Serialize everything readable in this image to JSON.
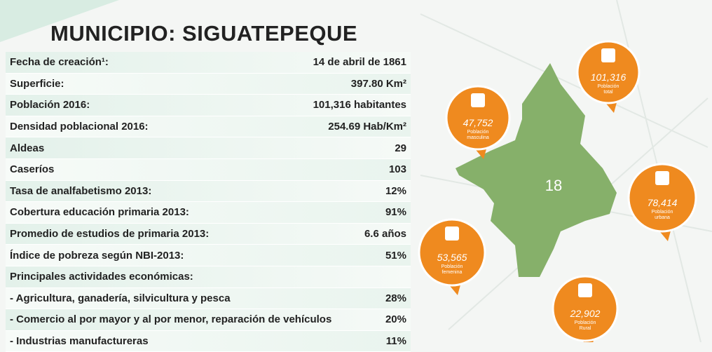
{
  "title": "MUNICIPIO: SIGUATEPEQUE",
  "table": {
    "rows": [
      [
        "Fecha de creación¹:",
        "14 de abril de 1861"
      ],
      [
        "Superficie:",
        "397.80 Km²"
      ],
      [
        "Población 2016:",
        "101,316 habitantes"
      ],
      [
        "Densidad poblacional 2016:",
        "254.69 Hab/Km²"
      ],
      [
        "Aldeas",
        "29"
      ],
      [
        "Caseríos",
        "103"
      ],
      [
        "Tasa de analfabetismo 2013:",
        "12%"
      ],
      [
        "Cobertura educación primaria 2013:",
        "91%"
      ],
      [
        "Promedio de estudios de primaria 2013:",
        "6.6 años"
      ],
      [
        "Índice de pobreza según NBI-2013:",
        "51%"
      ],
      [
        "Principales actividades económicas:"
      ],
      [
        "- Agricultura, ganadería, silvicultura y pesca",
        "28%"
      ],
      [
        "- Comercio al por mayor y al por menor, reparación de vehículos",
        "20%"
      ],
      [
        "- Industrias manufactureras",
        "11%"
      ]
    ]
  },
  "map": {
    "label": "18"
  },
  "bubbles": [
    {
      "value": "101,316",
      "label": "Población total"
    },
    {
      "value": "47,752",
      "label": "Población masculina"
    },
    {
      "value": "78,414",
      "label": "Población urbana"
    },
    {
      "value": "53,565",
      "label": "Población femenina"
    },
    {
      "value": "22,902",
      "label": "Población Rural"
    }
  ]
}
